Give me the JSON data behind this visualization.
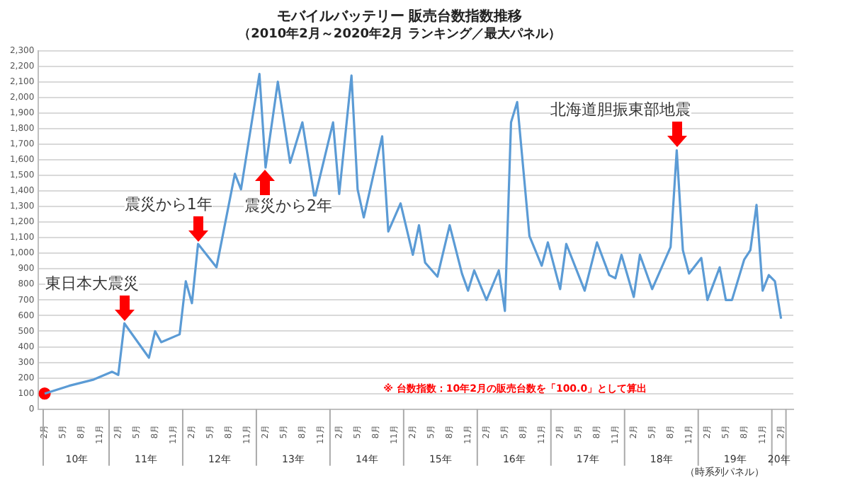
{
  "chart_data": {
    "type": "line",
    "title": "モバイルバッテリー 販売台数指数推移",
    "subtitle": "（2010年2月～2020年2月 ランキング／最大パネル）",
    "xlim": [
      "2010-01",
      "2020-04"
    ],
    "ylim": [
      0,
      2300
    ],
    "yticks": [
      0,
      100,
      200,
      300,
      400,
      500,
      600,
      700,
      800,
      900,
      {
        "value": 1000,
        "label": "1,000"
      },
      {
        "value": 1100,
        "label": "1,100"
      },
      {
        "value": 1200,
        "label": "1,200"
      },
      {
        "value": 1300,
        "label": "1,300"
      },
      {
        "value": 1400,
        "label": "1,400"
      },
      {
        "value": 1500,
        "label": "1,500"
      },
      {
        "value": 1600,
        "label": "1,600"
      },
      {
        "value": 1700,
        "label": "1,700"
      },
      {
        "value": 1800,
        "label": "1,800"
      },
      {
        "value": 1900,
        "label": "1,900"
      },
      {
        "value": 2000,
        "label": "2,000"
      },
      {
        "value": 2100,
        "label": "2,100"
      },
      {
        "value": 2200,
        "label": "2,200"
      },
      {
        "value": 2300,
        "label": "2,300"
      }
    ],
    "xticks": [
      {
        "value": "2010-02",
        "label": "2月"
      },
      {
        "value": "2010-05",
        "label": "5月"
      },
      {
        "value": "2010-08",
        "label": "8月"
      },
      {
        "value": "2010-11",
        "label": "11月"
      },
      {
        "value": "2011-02",
        "label": "2月"
      },
      {
        "value": "2011-05",
        "label": "5月"
      },
      {
        "value": "2011-08",
        "label": "8月"
      },
      {
        "value": "2011-11",
        "label": "11月"
      },
      {
        "value": "2012-02",
        "label": "2月"
      },
      {
        "value": "2012-05",
        "label": "5月"
      },
      {
        "value": "2012-08",
        "label": "8月"
      },
      {
        "value": "2012-11",
        "label": "11月"
      },
      {
        "value": "2013-02",
        "label": "2月"
      },
      {
        "value": "2013-05",
        "label": "5月"
      },
      {
        "value": "2013-08",
        "label": "8月"
      },
      {
        "value": "2013-11",
        "label": "11月"
      },
      {
        "value": "2014-02",
        "label": "2月"
      },
      {
        "value": "2014-05",
        "label": "5月"
      },
      {
        "value": "2014-08",
        "label": "8月"
      },
      {
        "value": "2014-11",
        "label": "11月"
      },
      {
        "value": "2015-02",
        "label": "2月"
      },
      {
        "value": "2015-05",
        "label": "5月"
      },
      {
        "value": "2015-08",
        "label": "8月"
      },
      {
        "value": "2015-11",
        "label": "11月"
      },
      {
        "value": "2016-02",
        "label": "2月"
      },
      {
        "value": "2016-05",
        "label": "5月"
      },
      {
        "value": "2016-08",
        "label": "8月"
      },
      {
        "value": "2016-11",
        "label": "11月"
      },
      {
        "value": "2017-02",
        "label": "2月"
      },
      {
        "value": "2017-05",
        "label": "5月"
      },
      {
        "value": "2017-08",
        "label": "8月"
      },
      {
        "value": "2017-11",
        "label": "11月"
      },
      {
        "value": "2018-02",
        "label": "2月"
      },
      {
        "value": "2018-05",
        "label": "5月"
      },
      {
        "value": "2018-08",
        "label": "8月"
      },
      {
        "value": "2018-11",
        "label": "11月"
      },
      {
        "value": "2019-02",
        "label": "2月"
      },
      {
        "value": "2019-05",
        "label": "5月"
      },
      {
        "value": "2019-08",
        "label": "8月"
      },
      {
        "value": "2019-11",
        "label": "11月"
      },
      {
        "value": "2020-02",
        "label": "2月"
      }
    ],
    "grid": "y",
    "legend": false,
    "series": [
      {
        "color": "#5b9bd5",
        "marker": "none",
        "x": [
          "2010-02",
          "2010-06",
          "2010-10",
          "2011-01",
          "2011-02",
          "2011-03",
          "2011-07",
          "2011-08",
          "2011-09",
          "2011-12",
          "2012-01",
          "2012-02",
          "2012-03",
          "2012-06",
          "2012-09",
          "2012-10",
          "2013-01",
          "2013-02",
          "2013-04",
          "2013-06",
          "2013-08",
          "2013-10",
          "2014-01",
          "2014-02",
          "2014-04",
          "2014-05",
          "2014-06",
          "2014-09",
          "2014-10",
          "2014-12",
          "2015-02",
          "2015-03",
          "2015-04",
          "2015-06",
          "2015-08",
          "2015-10",
          "2015-11",
          "2015-12",
          "2016-02",
          "2016-04",
          "2016-05",
          "2016-06",
          "2016-07",
          "2016-09",
          "2016-11",
          "2016-12",
          "2017-02",
          "2017-03",
          "2017-05",
          "2017-06",
          "2017-08",
          "2017-10",
          "2017-11",
          "2017-12",
          "2018-02",
          "2018-03",
          "2018-05",
          "2018-08",
          "2018-09",
          "2018-10",
          "2018-11",
          "2019-01",
          "2019-02",
          "2019-04",
          "2019-05",
          "2019-06",
          "2019-08",
          "2019-09",
          "2019-10",
          "2019-11",
          "2019-12",
          "2020-01",
          "2020-02"
        ],
        "values": [
          100,
          150,
          190,
          240,
          220,
          550,
          330,
          500,
          430,
          480,
          820,
          680,
          1060,
          910,
          1510,
          1410,
          2150,
          1550,
          2100,
          1580,
          1840,
          1350,
          1840,
          1380,
          2140,
          1410,
          1230,
          1750,
          1140,
          1320,
          990,
          1180,
          940,
          850,
          1180,
          870,
          760,
          890,
          700,
          890,
          630,
          1840,
          1970,
          1110,
          920,
          1070,
          770,
          1060,
          860,
          760,
          1070,
          860,
          840,
          990,
          720,
          990,
          770,
          1040,
          1660,
          1020,
          870,
          970,
          700,
          910,
          700,
          700,
          960,
          1020,
          1310,
          760,
          860,
          820,
          580
        ]
      },
      {
        "type": "scatter",
        "color": "#ff0000",
        "marker": "circle",
        "x": [
          "2010-02"
        ],
        "values": [
          100
        ]
      }
    ],
    "annotations": [
      "10年",
      "11年",
      "12年",
      "13年",
      "14年",
      "15年",
      "16年",
      "17年",
      "18年",
      "19年",
      "20年",
      "（時系列パネル）",
      "※ 台数指数：10年2月の販売台数を「100.0」として算出",
      {
        "text": "東日本大震災",
        "x": "2011-03",
        "y": 550
      },
      {
        "text": "震災から1年",
        "x": "2012-03",
        "y": 1060
      },
      {
        "text": "震災から2年",
        "x": "2013-02",
        "y": 1550
      },
      {
        "text": "北海道胆振東部地震",
        "x": "2018-09",
        "y": 1660
      }
    ]
  }
}
